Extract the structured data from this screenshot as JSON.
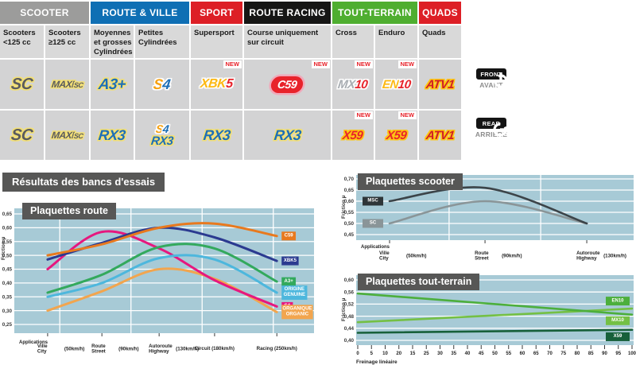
{
  "labels": {
    "new": "NEW"
  },
  "results_title": "Résultats des bancs d'essais",
  "side_badges": {
    "front": {
      "label": "FRONT",
      "sub": "AVANT"
    },
    "rear": {
      "label": "REAR",
      "sub": "ARRIÈRE"
    }
  },
  "table": {
    "groups": [
      {
        "label": "SCOOTER",
        "color": "#9c9c9b"
      },
      {
        "label": "ROUTE & VILLE",
        "color": "#0f6fb4"
      },
      {
        "label": "SPORT",
        "color": "#dd1f26"
      },
      {
        "label": "ROUTE RACING",
        "color": "#161615"
      },
      {
        "label": "TOUT-TERRAIN",
        "color": "#4fae30"
      },
      {
        "label": "QUADS",
        "color": "#dd1f26"
      }
    ],
    "columns": [
      "Scooters <125 cc",
      "Scooters ≥125 cc",
      "Moyennes et grosses Cylindrées",
      "Petites Cylindrées",
      "Supersport",
      "Course uniquement sur circuit",
      "Cross",
      "Enduro",
      "Quads"
    ],
    "front": [
      {
        "code": "SC"
      },
      {
        "code": "MAXI SC",
        "main": "MAXI",
        "sub": "SC"
      },
      {
        "code": "A3+"
      },
      {
        "code": "S4",
        "part1": "S",
        "part2": "4"
      },
      {
        "code": "XBK5",
        "part1": "XBK",
        "part2": "5",
        "new": true
      },
      {
        "code": "C59",
        "new": true
      },
      {
        "code": "MX10",
        "part1": "MX",
        "part2": "10",
        "new": true
      },
      {
        "code": "EN10",
        "part1": "EN",
        "part2": "10",
        "new": true
      },
      {
        "code": "ATV1"
      }
    ],
    "rear": [
      {
        "code": "SC"
      },
      {
        "code": "MAXI SC",
        "main": "MAXI",
        "sub": "SC"
      },
      {
        "code": "RX3"
      },
      {
        "code": "S4 / RX3",
        "top1": "S",
        "top2": "4",
        "bottom": "RX3"
      },
      {
        "code": "RX3"
      },
      {
        "code": "RX3"
      },
      {
        "code": "X59",
        "new": true
      },
      {
        "code": "X59",
        "new": true
      },
      {
        "code": "ATV1"
      }
    ]
  },
  "chart_data": [
    {
      "type": "line",
      "title": "Plaquettes route",
      "ylabel": "Friction µ",
      "x_note": "Applications",
      "ylim": [
        0.25,
        0.65
      ],
      "plot_bg": "#a7cad6",
      "grid": true,
      "yticks": [
        {
          "v": 0.65,
          "label": "0,65"
        },
        {
          "v": 0.6,
          "label": "0,60"
        },
        {
          "v": 0.55,
          "label": "0,55"
        },
        {
          "v": 0.5,
          "label": "0,50"
        },
        {
          "v": 0.45,
          "label": "0,45"
        },
        {
          "v": 0.4,
          "label": "0,40"
        },
        {
          "v": 0.35,
          "label": "0,35"
        },
        {
          "v": 0.3,
          "label": "0,30"
        },
        {
          "v": 0.25,
          "label": "0,25"
        }
      ],
      "x_categories": [
        {
          "fr": "Ville",
          "en": "City",
          "speed": "(50km/h)"
        },
        {
          "fr": "Route",
          "en": "Street",
          "speed": "(90km/h)"
        },
        {
          "fr": "Autoroute",
          "en": "Highway",
          "speed": "(130km/h)"
        },
        {
          "fr": "Circuit (180km/h)",
          "en": "",
          "speed": ""
        },
        {
          "fr": "Racing (250km/h)",
          "en": "",
          "speed": ""
        }
      ],
      "series": [
        {
          "name": "C59",
          "color": "#e8791e",
          "label_lines": [
            "C59"
          ],
          "values": [
            0.5,
            0.54,
            0.6,
            0.615,
            0.57
          ]
        },
        {
          "name": "XBK5",
          "color": "#2b3a90",
          "label_lines": [
            "XBK5"
          ],
          "values": [
            0.485,
            0.545,
            0.6,
            0.565,
            0.48
          ]
        },
        {
          "name": "A3+",
          "color": "#33a95d",
          "label_lines": [
            "A3+"
          ],
          "values": [
            0.365,
            0.43,
            0.53,
            0.525,
            0.405
          ]
        },
        {
          "name": "ORIGINE GENUINE",
          "color": "#4db7dd",
          "label_lines": [
            "ORIGINE",
            "GENUINE"
          ],
          "values": [
            0.35,
            0.4,
            0.49,
            0.485,
            0.365
          ]
        },
        {
          "name": "S4",
          "color": "#e6187e",
          "label_lines": [
            "S4"
          ],
          "values": [
            0.45,
            0.585,
            0.525,
            0.41,
            0.315
          ]
        },
        {
          "name": "ORGANIQUE ORGANIC",
          "color": "#f2a54e",
          "label_lines": [
            "ORGANIQUE",
            "ORGANIC"
          ],
          "values": [
            0.3,
            0.37,
            0.45,
            0.415,
            0.295
          ]
        }
      ]
    },
    {
      "type": "line",
      "title": "Plaquettes scooter",
      "ylabel": "Friction µ",
      "x_note": "Applications",
      "ylim": [
        0.45,
        0.7
      ],
      "plot_bg": "#a7cad6",
      "grid": true,
      "yticks": [
        {
          "v": 0.7,
          "label": "0,70"
        },
        {
          "v": 0.65,
          "label": "0,65"
        },
        {
          "v": 0.6,
          "label": "0,60"
        },
        {
          "v": 0.55,
          "label": "0,55"
        },
        {
          "v": 0.5,
          "label": "0,50"
        },
        {
          "v": 0.45,
          "label": "0,45"
        }
      ],
      "x_categories": [
        {
          "fr": "Ville",
          "en": "City",
          "speed": "(50km/h)"
        },
        {
          "fr": "Route",
          "en": "Street",
          "speed": "(90km/h)"
        },
        {
          "fr": "Autoroute",
          "en": "Highway",
          "speed": "(130km/h)"
        }
      ],
      "series": [
        {
          "name": "MSC",
          "color": "#3c4449",
          "label_bg": "#2e3538",
          "label_lines": [
            "MSC"
          ],
          "values": [
            0.6,
            0.66,
            0.5
          ]
        },
        {
          "name": "SC",
          "color": "#8a9598",
          "label_bg": "#8a9598",
          "label_lines": [
            "SC"
          ],
          "values": [
            0.5,
            0.6,
            0.5
          ]
        }
      ]
    },
    {
      "type": "line",
      "title": "Plaquettes tout-terrain",
      "ylabel": "Friction µ",
      "xlabel": "Freinage linéaire",
      "ylim": [
        0.4,
        0.6
      ],
      "plot_bg": "#a7cad6",
      "grid": true,
      "yticks": [
        {
          "v": 0.6,
          "label": "0,60"
        },
        {
          "v": 0.56,
          "label": "0,56"
        },
        {
          "v": 0.52,
          "label": "0,52"
        },
        {
          "v": 0.48,
          "label": "0,48"
        },
        {
          "v": 0.44,
          "label": "0,44"
        },
        {
          "v": 0.4,
          "label": "0,40"
        }
      ],
      "xticks": [
        "0",
        "5",
        "10",
        "20",
        "15",
        "25",
        "30",
        "35",
        "40",
        "45",
        "50",
        "55",
        "60",
        "65",
        "70",
        "75",
        "80",
        "85",
        "90",
        "95",
        "100"
      ],
      "series": [
        {
          "name": "EN10",
          "color": "#4caf3c",
          "label_v": 0.53,
          "x": [
            0,
            100
          ],
          "values": [
            0.555,
            0.485
          ]
        },
        {
          "name": "MX10",
          "color": "#74c044",
          "label_v": 0.465,
          "x": [
            0,
            100
          ],
          "values": [
            0.46,
            0.505
          ]
        },
        {
          "name": "X59",
          "color": "#17603a",
          "label_v": 0.412,
          "x": [
            0,
            100
          ],
          "values": [
            0.425,
            0.435
          ]
        }
      ]
    }
  ]
}
